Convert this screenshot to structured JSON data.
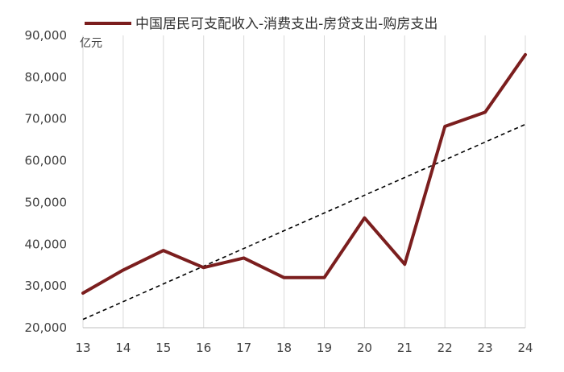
{
  "chart_data": {
    "type": "line",
    "unit_label": "亿元",
    "x": [
      "13",
      "14",
      "15",
      "16",
      "17",
      "18",
      "19",
      "20",
      "21",
      "22",
      "23",
      "24"
    ],
    "ylim": [
      20000,
      90000
    ],
    "yticks": [
      "20,000",
      "30,000",
      "40,000",
      "50,000",
      "60,000",
      "70,000",
      "80,000",
      "90,000"
    ],
    "ytick_values": [
      20000,
      30000,
      40000,
      50000,
      60000,
      70000,
      80000,
      90000
    ],
    "grid": {
      "vertical": true,
      "horizontal": false
    },
    "legend_position": "top",
    "series": [
      {
        "name": "中国居民可支配收入-消费支出-房贷支出-购房支出",
        "color": "#7b1e1e",
        "values": [
          28300,
          33800,
          38500,
          34400,
          36700,
          32000,
          32000,
          46300,
          35200,
          68200,
          71600,
          85400
        ]
      }
    ],
    "trendline": {
      "style": "dashed",
      "color": "#000000",
      "start": 22000,
      "end": 68700
    }
  }
}
